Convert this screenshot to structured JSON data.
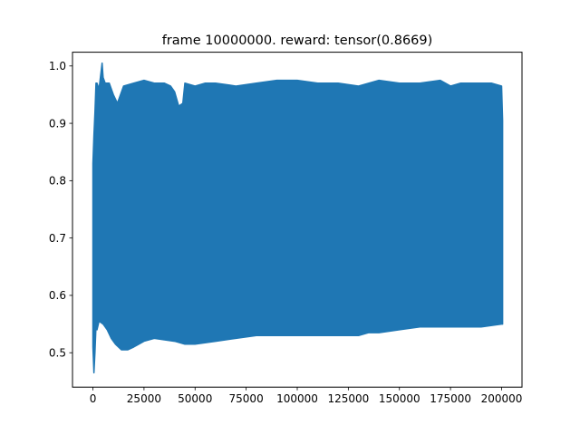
{
  "chart_data": {
    "type": "line",
    "title": "frame 10000000. reward: tensor(0.8669)",
    "xlabel": "",
    "ylabel": "",
    "xlim": [
      -9990,
      209990
    ],
    "ylim": [
      0.44,
      1.024
    ],
    "xticks": [
      {
        "value": 0,
        "label": "0"
      },
      {
        "value": 25000,
        "label": "25000"
      },
      {
        "value": 50000,
        "label": "50000"
      },
      {
        "value": 75000,
        "label": "75000"
      },
      {
        "value": 100000,
        "label": "100000"
      },
      {
        "value": 125000,
        "label": "125000"
      },
      {
        "value": 150000,
        "label": "150000"
      },
      {
        "value": 175000,
        "label": "175000"
      },
      {
        "value": 200000,
        "label": "200000"
      }
    ],
    "yticks": [
      {
        "value": 0.5,
        "label": "0.5"
      },
      {
        "value": 0.6,
        "label": "0.6"
      },
      {
        "value": 0.7,
        "label": "0.7"
      },
      {
        "value": 0.8,
        "label": "0.8"
      },
      {
        "value": 0.9,
        "label": "0.9"
      },
      {
        "value": 1.0,
        "label": "1.0"
      }
    ],
    "grid": false,
    "legend": "none",
    "series": [
      {
        "color": "#1f77b4",
        "upper_envelope": {
          "x": [
            0,
            500,
            1000,
            1500,
            2000,
            3000,
            4500,
            5000,
            6000,
            8000,
            10000,
            12000,
            15000,
            20000,
            25000,
            30000,
            35000,
            38000,
            40000,
            42000,
            44000,
            45000,
            50000,
            55000,
            60000,
            70000,
            80000,
            90000,
            100000,
            110000,
            120000,
            130000,
            140000,
            150000,
            160000,
            170000,
            175000,
            180000,
            190000,
            195000,
            200000,
            200500
          ],
          "y": [
            0.83,
            0.88,
            0.92,
            0.97,
            0.97,
            0.96,
            1.005,
            0.98,
            0.97,
            0.97,
            0.95,
            0.935,
            0.965,
            0.97,
            0.975,
            0.97,
            0.97,
            0.965,
            0.955,
            0.93,
            0.935,
            0.97,
            0.965,
            0.97,
            0.97,
            0.965,
            0.97,
            0.975,
            0.975,
            0.97,
            0.97,
            0.965,
            0.975,
            0.97,
            0.97,
            0.975,
            0.965,
            0.97,
            0.97,
            0.97,
            0.965,
            0.905
          ]
        },
        "lower_envelope": {
          "x": [
            0,
            500,
            1000,
            1500,
            2000,
            3000,
            5000,
            7000,
            9000,
            11000,
            14000,
            17000,
            20000,
            25000,
            30000,
            40000,
            45000,
            50000,
            60000,
            70000,
            80000,
            100000,
            120000,
            130000,
            135000,
            140000,
            150000,
            160000,
            170000,
            180000,
            190000,
            200000,
            200500
          ],
          "y": [
            0.51,
            0.465,
            0.5,
            0.545,
            0.54,
            0.555,
            0.55,
            0.54,
            0.525,
            0.515,
            0.505,
            0.505,
            0.51,
            0.52,
            0.525,
            0.52,
            0.515,
            0.515,
            0.52,
            0.525,
            0.53,
            0.53,
            0.53,
            0.53,
            0.535,
            0.535,
            0.54,
            0.545,
            0.545,
            0.545,
            0.545,
            0.55,
            0.55
          ]
        }
      }
    ]
  }
}
